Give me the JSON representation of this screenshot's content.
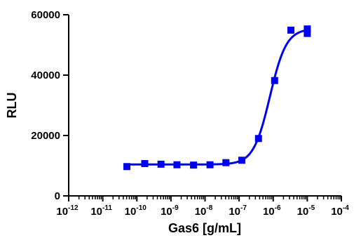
{
  "chart_data": {
    "type": "scatter",
    "title": "",
    "xlabel": "Gas6 [g/mL]",
    "ylabel": "RLU",
    "x_scale": "log",
    "xlim": [
      1e-12,
      0.0001
    ],
    "ylim": [
      0,
      60000
    ],
    "grid": false,
    "legend": "none",
    "x_tick_labels": [
      "10-12",
      "10-11",
      "10-10",
      "10-9",
      "10-8",
      "10-7",
      "10-6",
      "10-5",
      "10-4"
    ],
    "x_tick_bases": [
      "10",
      "10",
      "10",
      "10",
      "10",
      "10",
      "10",
      "10",
      "10"
    ],
    "x_tick_exponents": [
      "-12",
      "-11",
      "-10",
      "-9",
      "-8",
      "-7",
      "-6",
      "-5",
      "-4"
    ],
    "x_tick_values": [
      1e-12,
      1e-11,
      1e-10,
      1e-09,
      1e-08,
      1e-07,
      1e-06,
      1e-05,
      0.0001
    ],
    "y_ticks": [
      0,
      20000,
      40000,
      60000
    ],
    "y_tick_labels": [
      "0",
      "20000",
      "40000",
      "60000"
    ],
    "series": [
      {
        "color": "#0000ee",
        "marker": "square",
        "points": [
          {
            "x": 5.1e-11,
            "y": 9700
          },
          {
            "x": 1.7e-10,
            "y": 10700
          },
          {
            "x": 5.1e-10,
            "y": 10500
          },
          {
            "x": 1.5e-09,
            "y": 10300
          },
          {
            "x": 4.6e-09,
            "y": 10200
          },
          {
            "x": 1.4e-08,
            "y": 10300
          },
          {
            "x": 4.1e-08,
            "y": 11000
          },
          {
            "x": 1.2e-07,
            "y": 11800
          },
          {
            "x": 3.7e-07,
            "y": 19000
          },
          {
            "x": 1.1e-06,
            "y": 38200
          },
          {
            "x": 3.3e-06,
            "y": 54900
          },
          {
            "x": 1e-05,
            "y": 55300
          },
          {
            "x": 1e-05,
            "y": 53800
          }
        ]
      }
    ],
    "fit_curve": {
      "color": "#0000ee",
      "model": "4PL",
      "bottom": 10400,
      "top": 55400,
      "ec50": 8e-07,
      "hill": 1.8,
      "x_range": [
        5.1e-11,
        1e-05
      ]
    }
  }
}
